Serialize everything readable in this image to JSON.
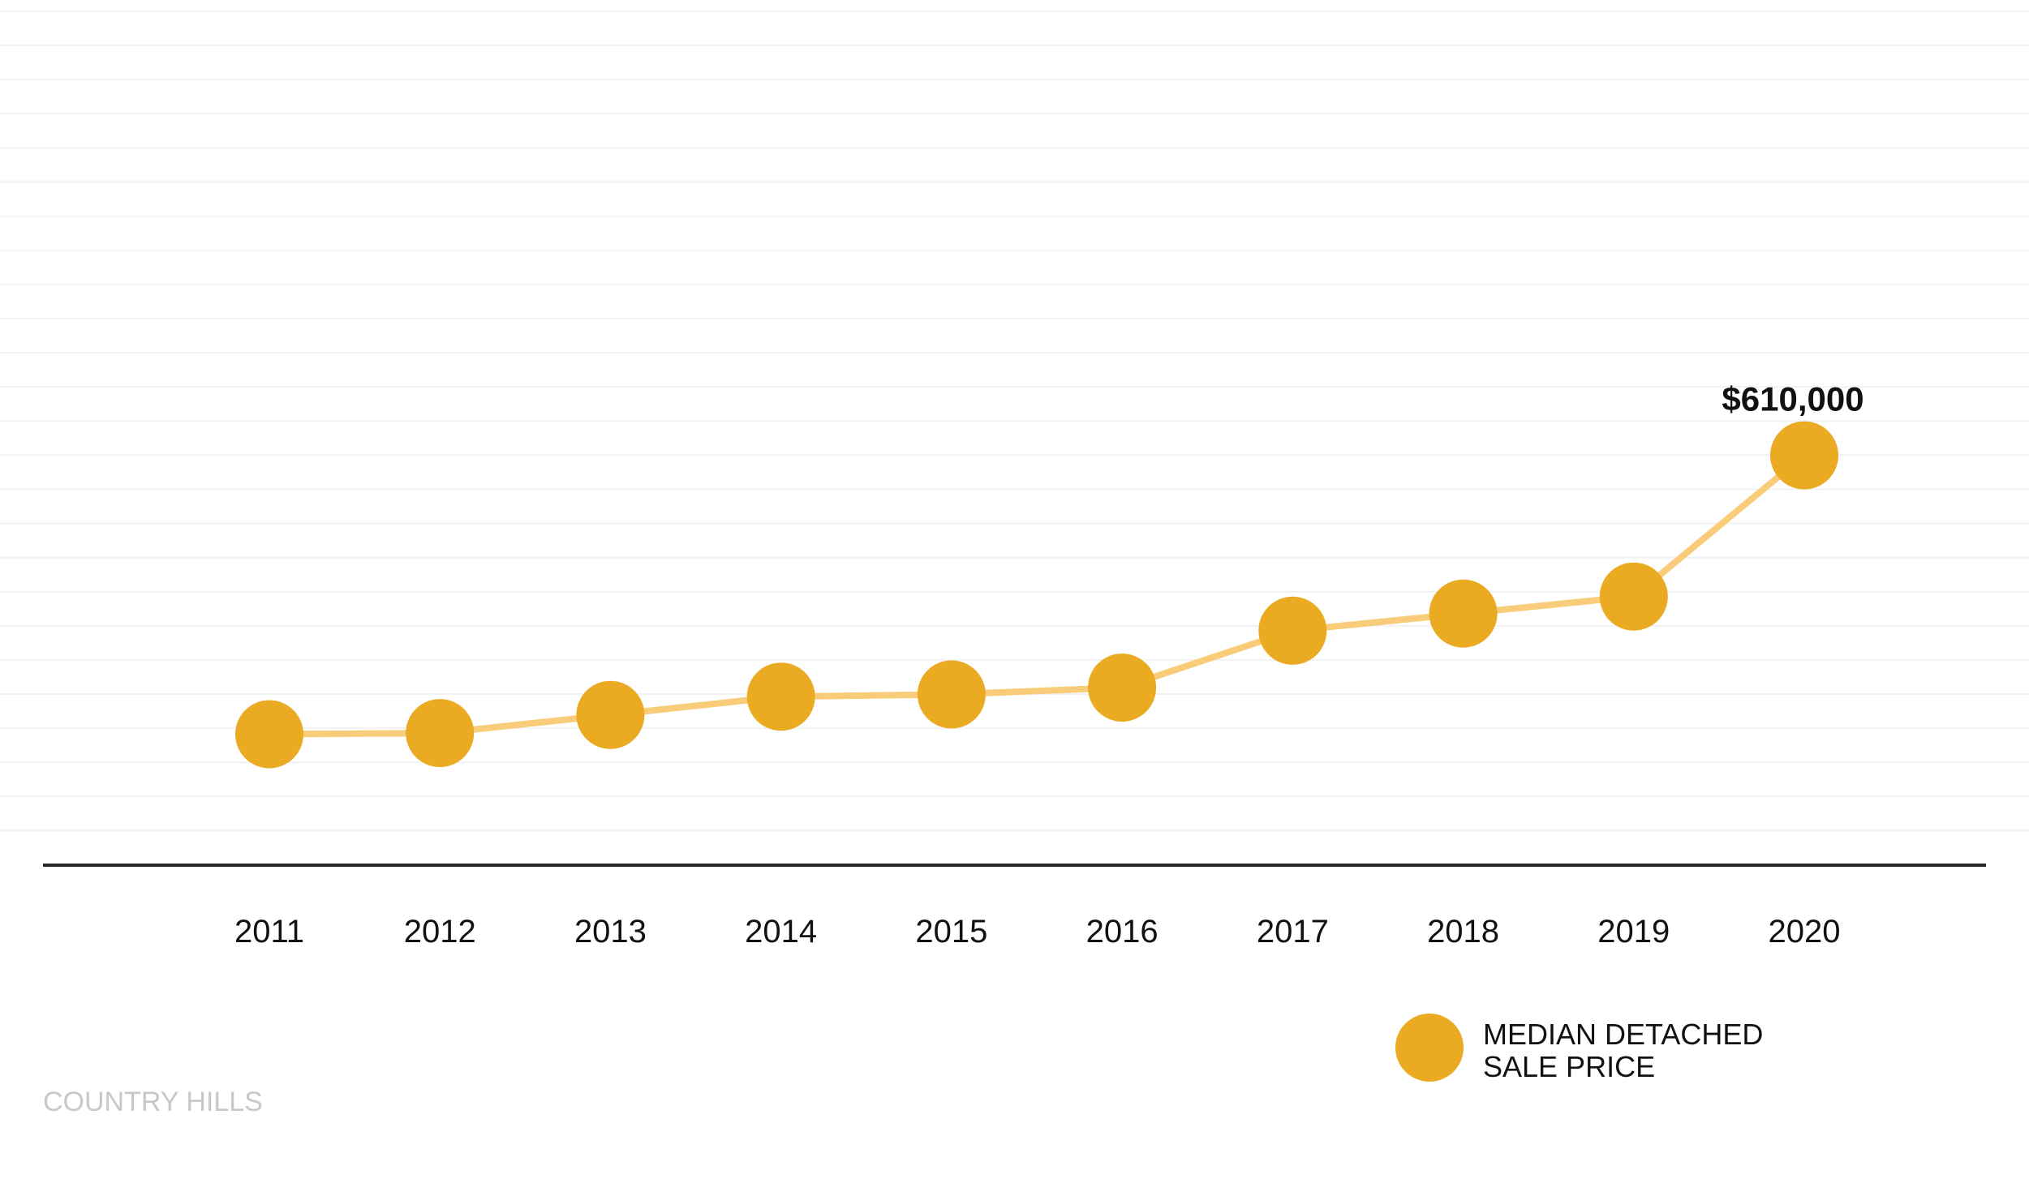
{
  "chart_data": {
    "type": "line",
    "categories": [
      "2011",
      "2012",
      "2013",
      "2014",
      "2015",
      "2016",
      "2017",
      "2018",
      "2019",
      "2020"
    ],
    "series": [
      {
        "name": "MEDIAN DETACHED SALE PRICE",
        "values": [
          365000,
          366000,
          382000,
          398000,
          400000,
          406000,
          456000,
          471000,
          486000,
          610000
        ],
        "color": "#EAAA22",
        "line_color": "#F8CC78"
      }
    ],
    "data_labels": [
      {
        "category": "2020",
        "text": "$610,000"
      }
    ],
    "ylim": [
      250000,
      1000000
    ],
    "grid": true,
    "legend": {
      "position": "bottom-right",
      "lines": [
        "MEDIAN DETACHED",
        "SALE PRICE"
      ]
    },
    "title": "",
    "xlabel": "",
    "ylabel": ""
  },
  "footer": {
    "text": "COUNTRY HILLS"
  }
}
